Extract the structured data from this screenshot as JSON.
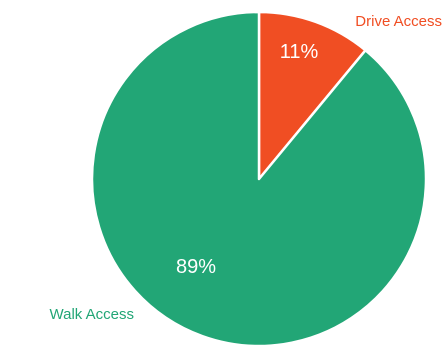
{
  "chart_data": {
    "type": "pie",
    "start": "top",
    "direction": "clockwise",
    "slices": [
      {
        "name": "Drive Access",
        "value": 11,
        "label": "11%",
        "color": "#f04e23"
      },
      {
        "name": "Walk Access",
        "value": 89,
        "label": "89%",
        "color": "#22a676"
      }
    ]
  }
}
